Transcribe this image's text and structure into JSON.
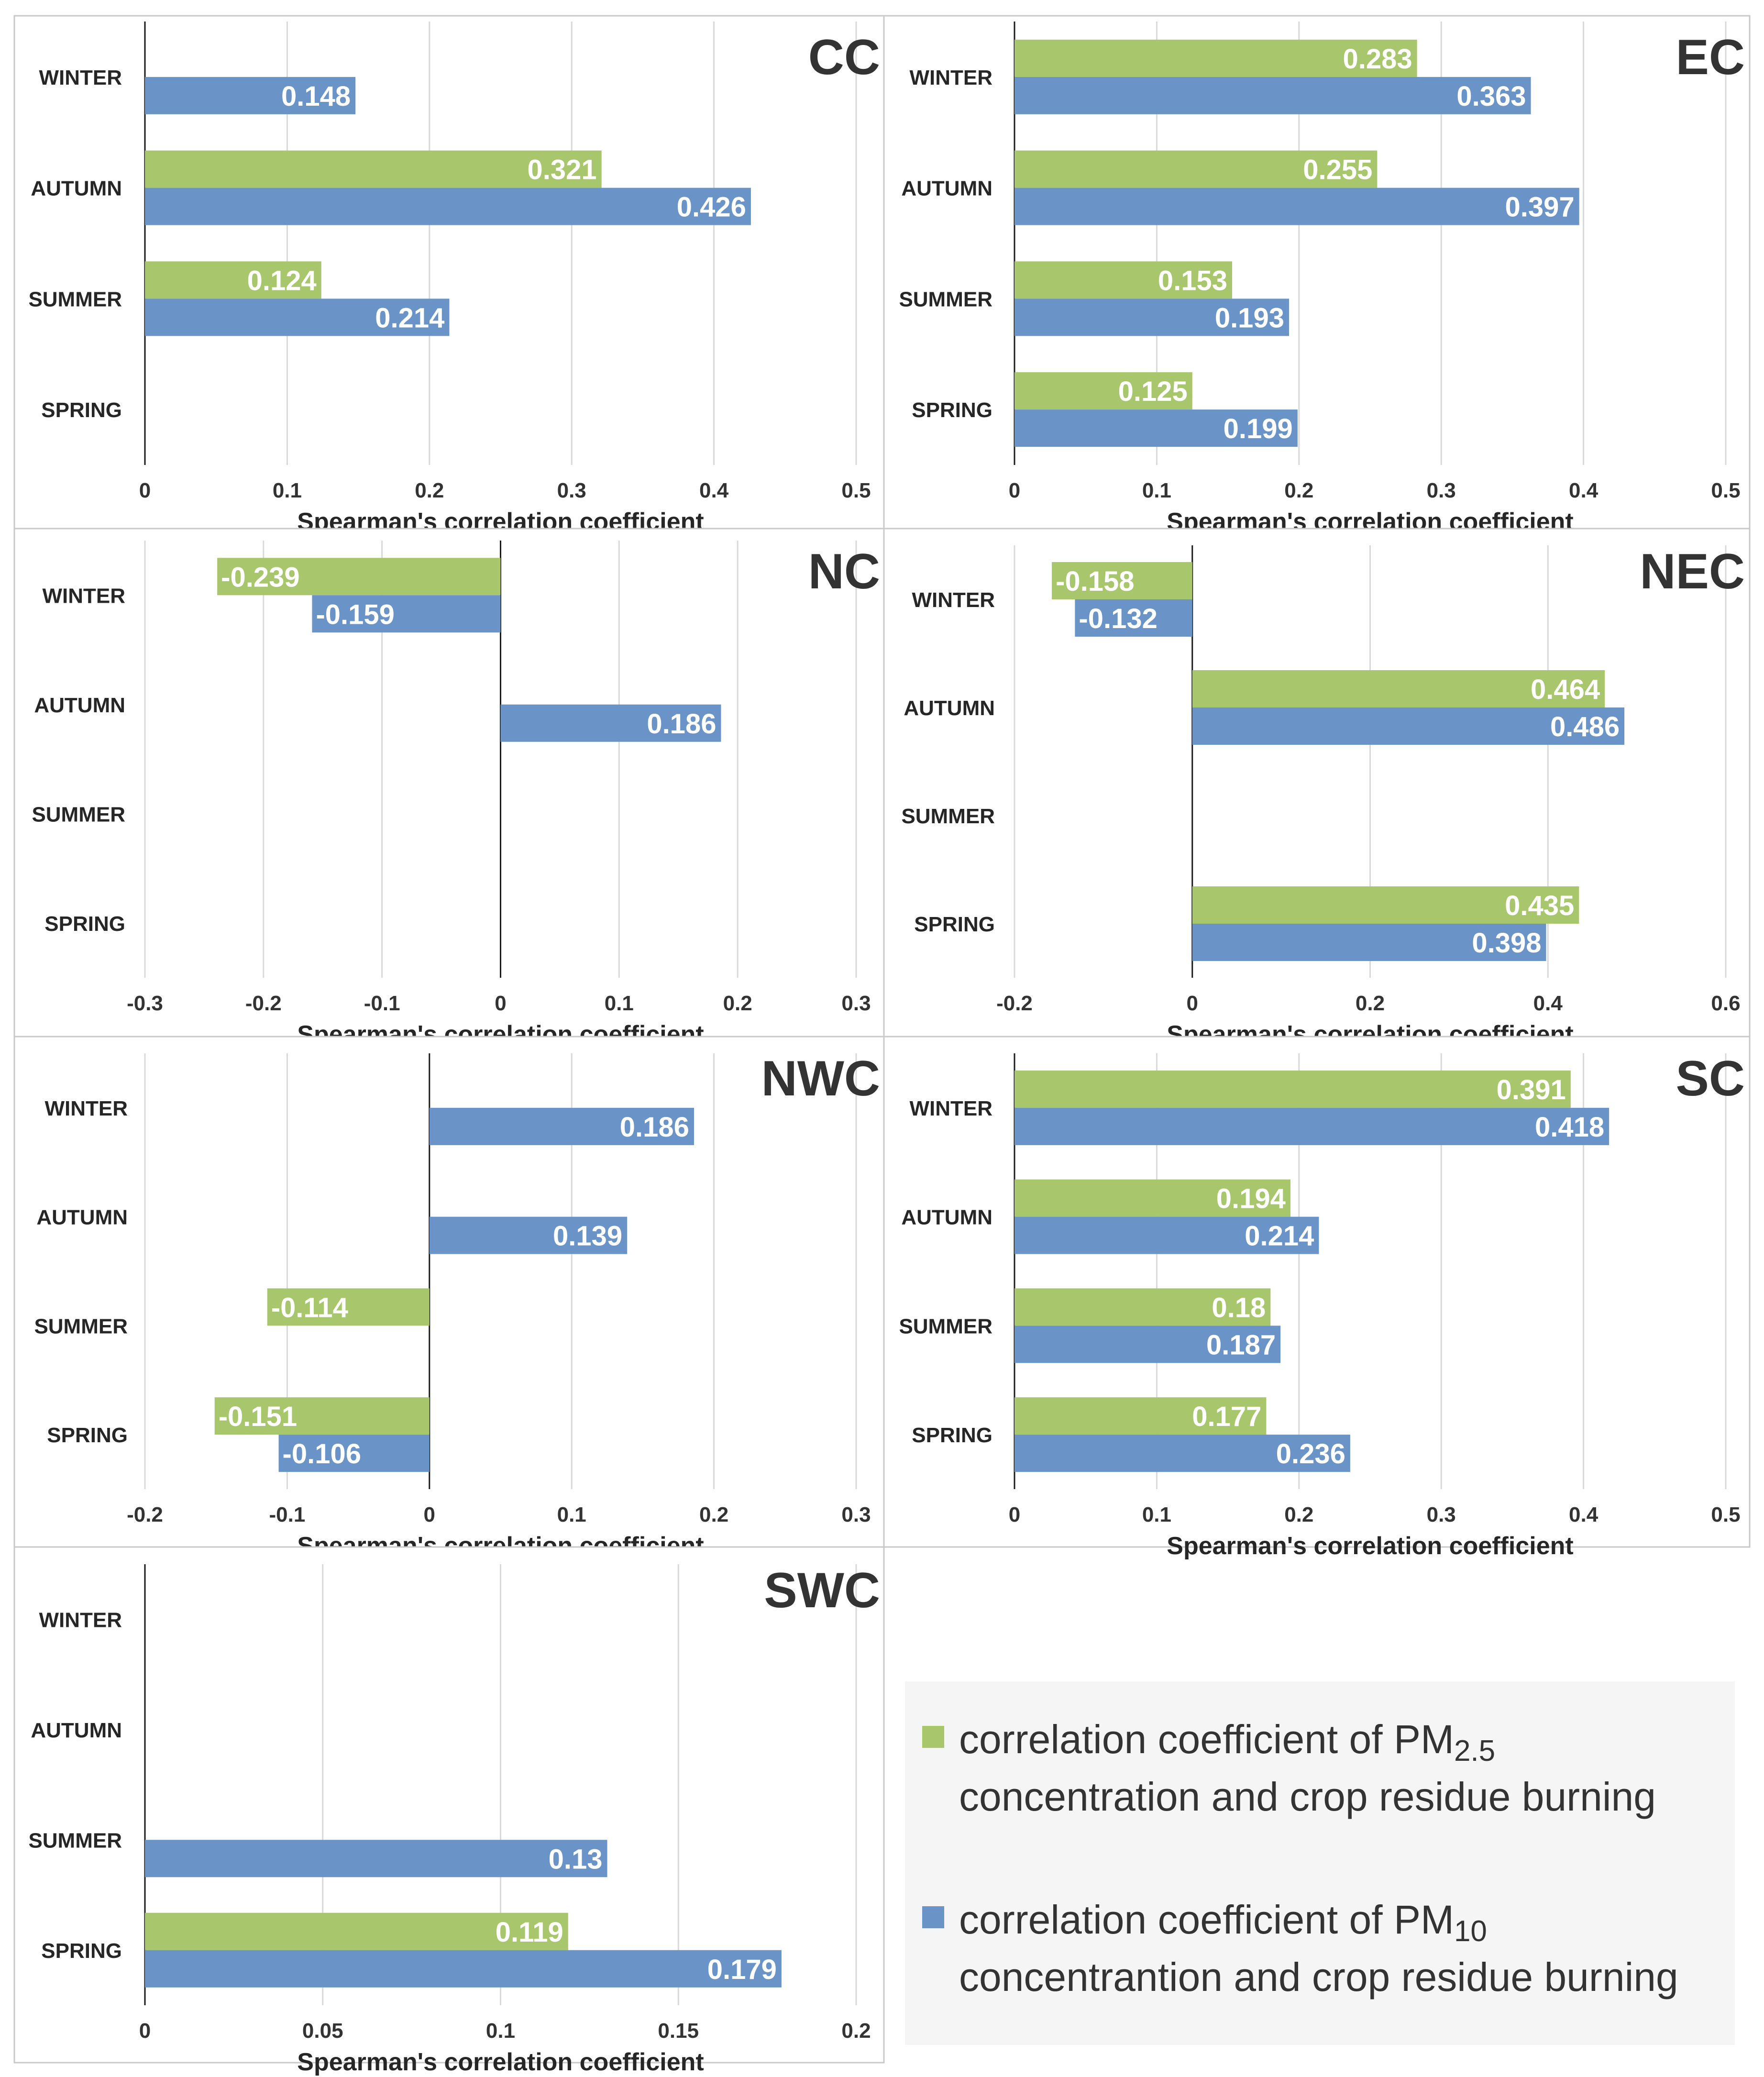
{
  "colors": {
    "pm25": "#a8c66c",
    "pm10": "#6a94c8"
  },
  "chart_data": [
    {
      "type": "bar",
      "orientation": "horizontal",
      "title": "CC",
      "xlabel": "Spearman's correlation coefficient",
      "categories": [
        "WINTER",
        "AUTUMN",
        "SUMMER",
        "SPRING"
      ],
      "xlim": [
        0,
        0.5
      ],
      "xticks": [
        "0",
        "0.1",
        "0.2",
        "0.3",
        "0.4",
        "0.5"
      ],
      "series": [
        {
          "name": "pm25",
          "values": [
            null,
            0.321,
            0.124,
            null
          ]
        },
        {
          "name": "pm10",
          "values": [
            0.148,
            0.426,
            0.214,
            null
          ]
        }
      ]
    },
    {
      "type": "bar",
      "orientation": "horizontal",
      "title": "EC",
      "xlabel": "Spearman's correlation coefficient",
      "categories": [
        "WINTER",
        "AUTUMN",
        "SUMMER",
        "SPRING"
      ],
      "xlim": [
        0,
        0.5
      ],
      "xticks": [
        "0",
        "0.1",
        "0.2",
        "0.3",
        "0.4",
        "0.5"
      ],
      "series": [
        {
          "name": "pm25",
          "values": [
            0.283,
            0.255,
            0.153,
            0.125
          ]
        },
        {
          "name": "pm10",
          "values": [
            0.363,
            0.397,
            0.193,
            0.199
          ]
        }
      ]
    },
    {
      "type": "bar",
      "orientation": "horizontal",
      "title": "NC",
      "xlabel": "Spearman's correlation coefficient",
      "categories": [
        "WINTER",
        "AUTUMN",
        "SUMMER",
        "SPRING"
      ],
      "xlim": [
        -0.3,
        0.3
      ],
      "xticks": [
        "-0.3",
        "-0.2",
        "-0.1",
        "0",
        "0.1",
        "0.2",
        "0.3"
      ],
      "series": [
        {
          "name": "pm25",
          "values": [
            -0.239,
            null,
            null,
            null
          ]
        },
        {
          "name": "pm10",
          "values": [
            -0.159,
            0.186,
            null,
            null
          ]
        }
      ]
    },
    {
      "type": "bar",
      "orientation": "horizontal",
      "title": "NEC",
      "xlabel": "Spearman's correlation coefficient",
      "categories": [
        "WINTER",
        "AUTUMN",
        "SUMMER",
        "SPRING"
      ],
      "xlim": [
        -0.2,
        0.6
      ],
      "xticks": [
        "-0.2",
        "0",
        "0.2",
        "0.4",
        "0.6"
      ],
      "series": [
        {
          "name": "pm25",
          "values": [
            -0.158,
            0.464,
            null,
            0.435
          ]
        },
        {
          "name": "pm10",
          "values": [
            -0.132,
            0.486,
            null,
            0.398
          ]
        }
      ]
    },
    {
      "type": "bar",
      "orientation": "horizontal",
      "title": "NWC",
      "xlabel": "Spearman's correlation coefficient",
      "categories": [
        "WINTER",
        "AUTUMN",
        "SUMMER",
        "SPRING"
      ],
      "xlim": [
        -0.2,
        0.3
      ],
      "xticks": [
        "-0.2",
        "-0.1",
        "0",
        "0.1",
        "0.2",
        "0.3"
      ],
      "series": [
        {
          "name": "pm25",
          "values": [
            null,
            null,
            -0.114,
            -0.151
          ]
        },
        {
          "name": "pm10",
          "values": [
            0.186,
            0.139,
            null,
            -0.106
          ]
        }
      ]
    },
    {
      "type": "bar",
      "orientation": "horizontal",
      "title": "SC",
      "xlabel": "Spearman's correlation coefficient",
      "categories": [
        "WINTER",
        "AUTUMN",
        "SUMMER",
        "SPRING"
      ],
      "xlim": [
        0,
        0.5
      ],
      "xticks": [
        "0",
        "0.1",
        "0.2",
        "0.3",
        "0.4",
        "0.5"
      ],
      "series": [
        {
          "name": "pm25",
          "values": [
            0.391,
            0.194,
            0.18,
            0.177
          ]
        },
        {
          "name": "pm10",
          "values": [
            0.418,
            0.214,
            0.187,
            0.236
          ]
        }
      ]
    },
    {
      "type": "bar",
      "orientation": "horizontal",
      "title": "SWC",
      "xlabel": "Spearman's correlation coefficient",
      "categories": [
        "WINTER",
        "AUTUMN",
        "SUMMER",
        "SPRING"
      ],
      "xlim": [
        0,
        0.2
      ],
      "xticks": [
        "0",
        "0.05",
        "0.1",
        "0.15",
        "0.2"
      ],
      "series": [
        {
          "name": "pm25",
          "values": [
            null,
            null,
            null,
            0.119
          ]
        },
        {
          "name": "pm10",
          "values": [
            null,
            null,
            0.13,
            0.179
          ]
        }
      ]
    }
  ],
  "legend": {
    "pm25": {
      "line1_prefix": "correlation coefficient of PM",
      "line1_sub": "2.5",
      "line2": "concentration and crop residue burning"
    },
    "pm10": {
      "line1_prefix": "correlation coefficient of PM",
      "line1_sub": "10",
      "line2": "concentrantion and crop residue burning"
    }
  }
}
